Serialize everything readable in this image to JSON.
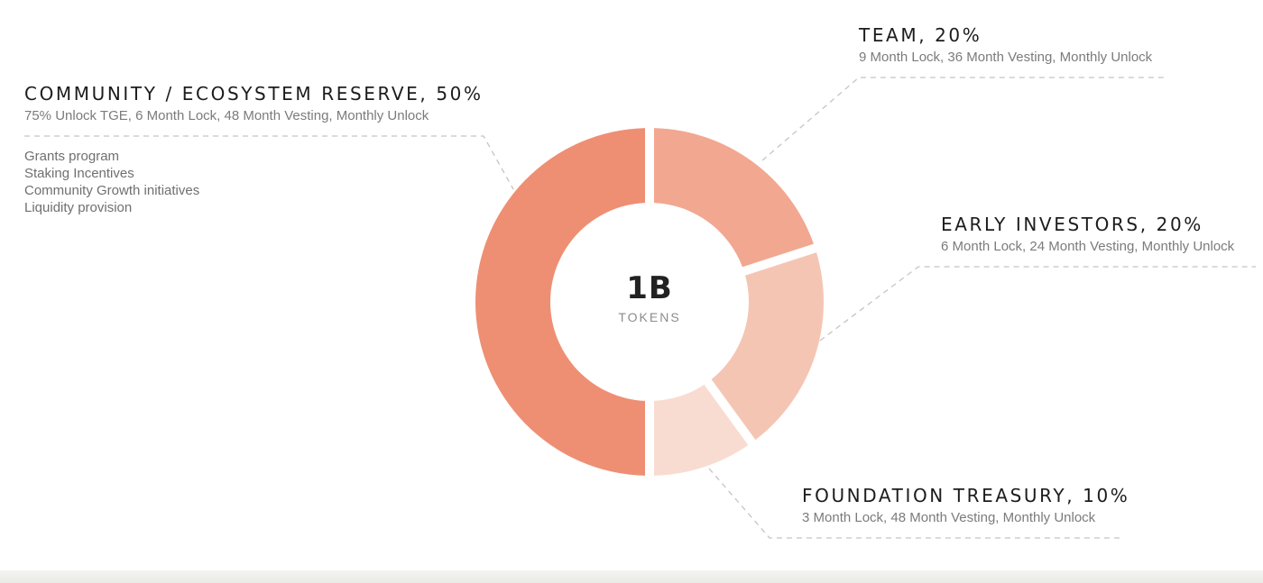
{
  "chart_data": {
    "type": "pie",
    "center": {
      "value": "1B",
      "unit": "TOKENS"
    },
    "slices": [
      {
        "key": "team",
        "label": "TEAM, 20%",
        "value": 20,
        "color": "#f2a791",
        "details": "9 Month Lock, 36 Month Vesting, Monthly Unlock"
      },
      {
        "key": "early",
        "label": "EARLY INVESTORS, 20%",
        "value": 20,
        "color": "#f5c5b4",
        "details": "6 Month Lock, 24 Month Vesting, Monthly Unlock"
      },
      {
        "key": "foundation",
        "label": "FOUNDATION TREASURY, 10%",
        "value": 10,
        "color": "#f9dcd1",
        "details": "3 Month Lock, 48 Month Vesting, Monthly Unlock"
      },
      {
        "key": "community",
        "label": "COMMUNITY / ECOSYSTEM RESERVE, 50%",
        "value": 50,
        "color": "#ee8f73",
        "details": "75% Unlock TGE, 6 Month Lock, 48 Month Vesting, Monthly Unlock",
        "notes": [
          "Grants program",
          "Staking Incentives",
          "Community Growth initiatives",
          "Liquidity provision"
        ]
      }
    ]
  }
}
